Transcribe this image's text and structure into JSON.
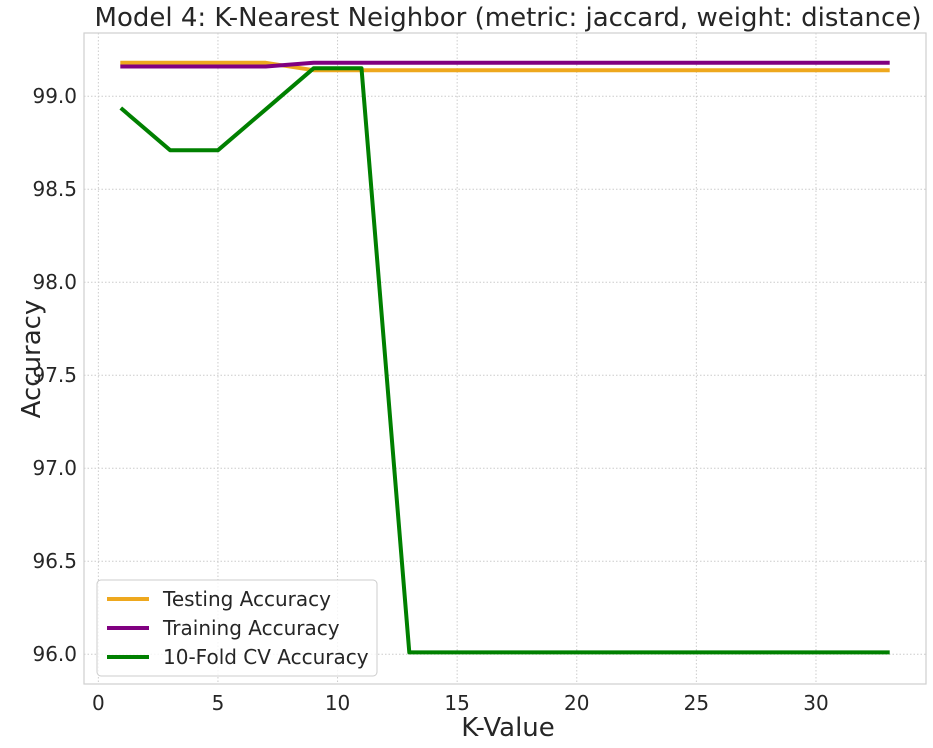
{
  "chart_data": {
    "type": "line",
    "title": "Model 4: K-Nearest Neighbor (metric: jaccard, weight: distance)",
    "xlabel": "K-Value",
    "ylabel": "Accuracy",
    "xlim": [
      -0.6,
      34.6
    ],
    "ylim": [
      95.84,
      99.34
    ],
    "xticks": [
      0,
      5,
      10,
      15,
      20,
      25,
      30
    ],
    "yticks": [
      96.0,
      96.5,
      97.0,
      97.5,
      98.0,
      98.5,
      99.0
    ],
    "ytick_labels": [
      "96.0",
      "96.5",
      "97.0",
      "97.5",
      "98.0",
      "98.5",
      "99.0"
    ],
    "grid": true,
    "legend_position": "lower-left",
    "x": [
      1,
      3,
      5,
      7,
      9,
      11,
      13,
      15,
      17,
      19,
      21,
      23,
      25,
      27,
      29,
      31,
      33
    ],
    "series": [
      {
        "name": "Testing Accuracy",
        "color": "#eea81e",
        "values": [
          99.18,
          99.18,
          99.18,
          99.18,
          99.14,
          99.14,
          99.14,
          99.14,
          99.14,
          99.14,
          99.14,
          99.14,
          99.14,
          99.14,
          99.14,
          99.14,
          99.14
        ]
      },
      {
        "name": "Training Accuracy",
        "color": "#800080",
        "values": [
          99.16,
          99.16,
          99.16,
          99.16,
          99.18,
          99.18,
          99.18,
          99.18,
          99.18,
          99.18,
          99.18,
          99.18,
          99.18,
          99.18,
          99.18,
          99.18,
          99.18
        ]
      },
      {
        "name": "10-Fold CV Accuracy",
        "color": "#008000",
        "values": [
          98.93,
          98.71,
          98.71,
          98.93,
          99.15,
          99.15,
          96.01,
          96.01,
          96.01,
          96.01,
          96.01,
          96.01,
          96.01,
          96.01,
          96.01,
          96.01,
          96.01
        ]
      }
    ]
  }
}
